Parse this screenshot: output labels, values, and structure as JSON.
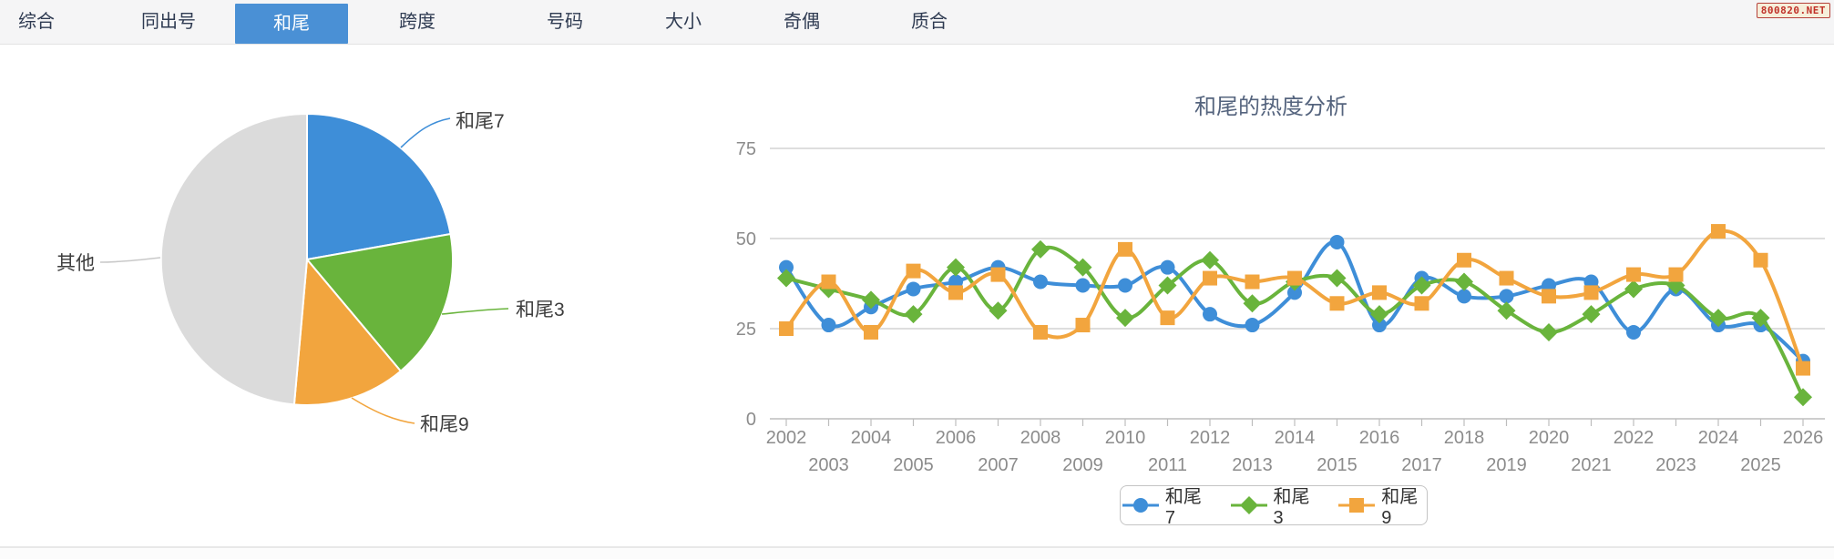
{
  "ui": {
    "colors": {
      "tab_active_bg": "#4a90d5",
      "tab_text": "#2f3b52",
      "tab_active_text": "#ffffff",
      "title_text": "#55647e",
      "axis_text": "#8c8c8c",
      "grid_line": "#d4d4d4",
      "axis_line": "#bdbdbd",
      "pie_label_text": "#3d3d3d",
      "leader_gray": "#c9c9c9"
    }
  },
  "watermark": {
    "text": "800820.NET",
    "text_color": "#c03028",
    "border_color": "#b5413a",
    "bg_color": "#f6eeda"
  },
  "tabs": {
    "items": [
      {
        "label": "综合",
        "active": false
      },
      {
        "label": "同出号",
        "active": false
      },
      {
        "label": "和尾",
        "active": true
      },
      {
        "label": "跨度",
        "active": false
      },
      {
        "label": "号码",
        "active": false
      },
      {
        "label": "大小",
        "active": false
      },
      {
        "label": "奇偶",
        "active": false
      },
      {
        "label": "质合",
        "active": false
      }
    ]
  },
  "chart_data": [
    {
      "type": "pie",
      "labels": [
        "和尾7",
        "和尾3",
        "和尾9",
        "其他"
      ],
      "values_pct": [
        22.2,
        16.7,
        12.5,
        48.6
      ],
      "colors": [
        "#3e8ed8",
        "#69b43c",
        "#f2a53e",
        "#dbdbdb"
      ],
      "start_angle_deg": 0,
      "direction": "clockwise",
      "legend_position": "none"
    },
    {
      "type": "line",
      "title": "和尾的热度分析",
      "x": [
        2002,
        2003,
        2004,
        2005,
        2006,
        2007,
        2008,
        2009,
        2010,
        2011,
        2012,
        2013,
        2014,
        2015,
        2016,
        2017,
        2018,
        2019,
        2020,
        2021,
        2022,
        2023,
        2024,
        2025,
        2026
      ],
      "series": [
        {
          "name": "和尾7",
          "color": "#3e8ed8",
          "marker": "circle",
          "values": [
            42,
            26,
            31,
            36,
            38,
            42,
            38,
            37,
            37,
            42,
            29,
            26,
            35,
            49,
            26,
            39,
            34,
            34,
            37,
            38,
            24,
            36,
            26,
            26,
            16
          ]
        },
        {
          "name": "和尾3",
          "color": "#69b43c",
          "marker": "diamond",
          "values": [
            39,
            36,
            33,
            29,
            42,
            30,
            47,
            42,
            28,
            37,
            44,
            32,
            38,
            39,
            29,
            37,
            38,
            30,
            24,
            29,
            36,
            37,
            28,
            28,
            6
          ]
        },
        {
          "name": "和尾9",
          "color": "#f2a53e",
          "marker": "square",
          "values": [
            25,
            38,
            24,
            41,
            35,
            40,
            24,
            26,
            47,
            28,
            39,
            38,
            39,
            32,
            35,
            32,
            44,
            39,
            34,
            35,
            40,
            40,
            52,
            44,
            14
          ]
        }
      ],
      "ylim": [
        0,
        75
      ],
      "yticks": [
        0,
        25,
        50,
        75
      ],
      "grid": "horizontal",
      "smooth": true,
      "legend_position": "bottom"
    }
  ]
}
